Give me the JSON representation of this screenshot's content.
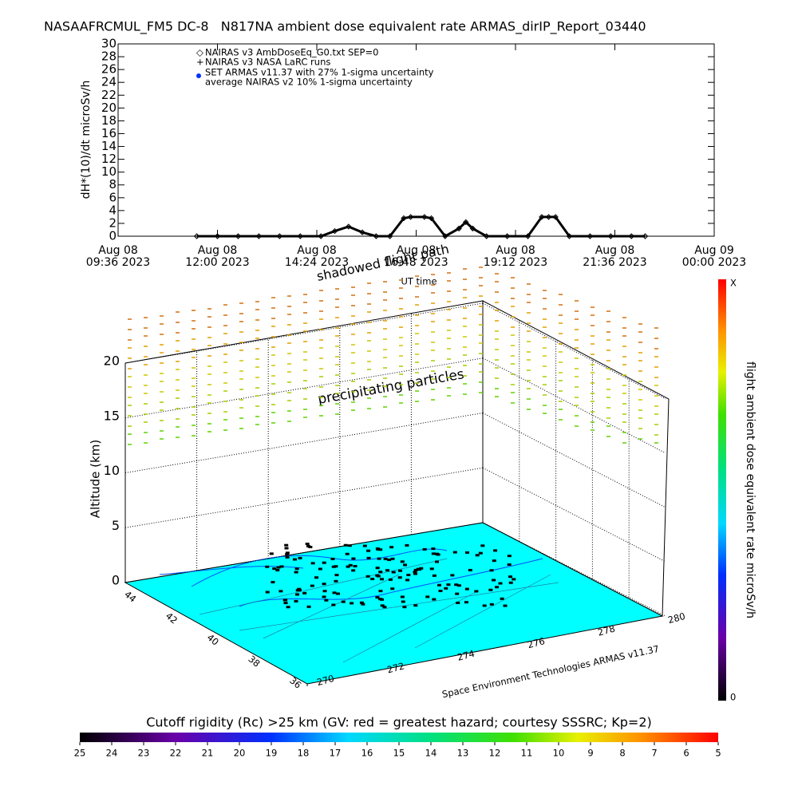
{
  "chart_data": [
    {
      "type": "line",
      "title": "NASAAFRCMUL_FM5 DC-8   N817NA ambient dose equivalent rate ARMAS_dirIP_Report_03440",
      "ylabel": "dH*(10)/dt microSv/h",
      "xlabel": "UT time",
      "annotations": [
        "shadowed flight path"
      ],
      "legend": [
        "NAIRAS v3 AmbDoseEq_G0.txt SEP=0",
        "NAIRAS v3 NASA LaRC runs",
        "SET ARMAS v11.37 with 27% 1-sigma uncertainty",
        "average NAIRAS v2 10% 1-sigma uncertainty"
      ],
      "x": [
        "2023-08-08T11:30",
        "2023-08-08T12:00",
        "2023-08-08T12:30",
        "2023-08-08T13:00",
        "2023-08-08T13:30",
        "2023-08-08T14:00",
        "2023-08-08T14:30",
        "2023-08-08T14:50",
        "2023-08-08T15:10",
        "2023-08-08T15:30",
        "2023-08-08T15:50",
        "2023-08-08T16:10",
        "2023-08-08T16:30",
        "2023-08-08T16:40",
        "2023-08-08T17:00",
        "2023-08-08T17:10",
        "2023-08-08T17:30",
        "2023-08-08T17:50",
        "2023-08-08T18:00",
        "2023-08-08T18:10",
        "2023-08-08T18:30",
        "2023-08-08T19:00",
        "2023-08-08T19:30",
        "2023-08-08T19:50",
        "2023-08-08T20:00",
        "2023-08-08T20:10",
        "2023-08-08T20:30",
        "2023-08-08T21:00",
        "2023-08-08T21:30",
        "2023-08-08T22:00",
        "2023-08-08T22:20"
      ],
      "values": [
        0,
        0,
        0,
        0,
        0,
        0,
        0,
        0.8,
        1.5,
        0.6,
        0,
        0,
        2.8,
        3,
        3,
        2.8,
        0,
        1.2,
        2.2,
        1.2,
        0,
        0,
        0,
        3,
        3,
        3,
        0,
        0,
        0,
        0,
        0
      ],
      "color": "#000000",
      "xlim": [
        "2023-08-08T09:36",
        "2023-08-09T00:00"
      ],
      "xticks": [
        {
          "value": "2023-08-08T09:36",
          "label": [
            "Aug 08",
            "09:36 2023"
          ]
        },
        {
          "value": "2023-08-08T12:00",
          "label": [
            "Aug 08",
            "12:00 2023"
          ]
        },
        {
          "value": "2023-08-08T14:24",
          "label": [
            "Aug 08",
            "14:24 2023"
          ]
        },
        {
          "value": "2023-08-08T16:48",
          "label": [
            "Aug 08",
            "16:48 2023"
          ]
        },
        {
          "value": "2023-08-08T19:12",
          "label": [
            "Aug 08",
            "19:12 2023"
          ]
        },
        {
          "value": "2023-08-08T21:36",
          "label": [
            "Aug 08",
            "21:36 2023"
          ]
        },
        {
          "value": "2023-08-09T00:00",
          "label": [
            "Aug 09",
            "00:00 2023"
          ]
        }
      ],
      "ylim": [
        0,
        30
      ],
      "yticks": [
        0,
        2,
        4,
        6,
        8,
        10,
        12,
        14,
        16,
        18,
        20,
        22,
        24,
        26,
        28,
        30
      ]
    },
    {
      "type": "3d",
      "zlabel": "Altitude (km)",
      "annotations": [
        "precipitating particles",
        "Space Environment Technologies ARMAS v11.37"
      ],
      "zlim": [
        0,
        20
      ],
      "zticks": [
        0,
        5,
        10,
        15,
        20
      ],
      "yticks": [
        44,
        42,
        40,
        38,
        36
      ],
      "xticks": [
        270,
        272,
        274,
        276,
        278,
        280
      ]
    },
    {
      "type": "colorbar",
      "label": "flight ambient dose equivalent rate microSv/h",
      "ticks": [
        "X",
        "0"
      ]
    },
    {
      "type": "colorbar",
      "label": "Cutoff rigidity (Rc) >25 km (GV: red = greatest hazard; courtesy SSSRC; Kp=2)",
      "lim": [
        25,
        5
      ],
      "ticks": [
        25,
        24,
        23,
        22,
        21,
        20,
        19,
        18,
        17,
        16,
        15,
        14,
        13,
        12,
        11,
        10,
        9,
        8,
        7,
        6,
        5
      ]
    }
  ]
}
